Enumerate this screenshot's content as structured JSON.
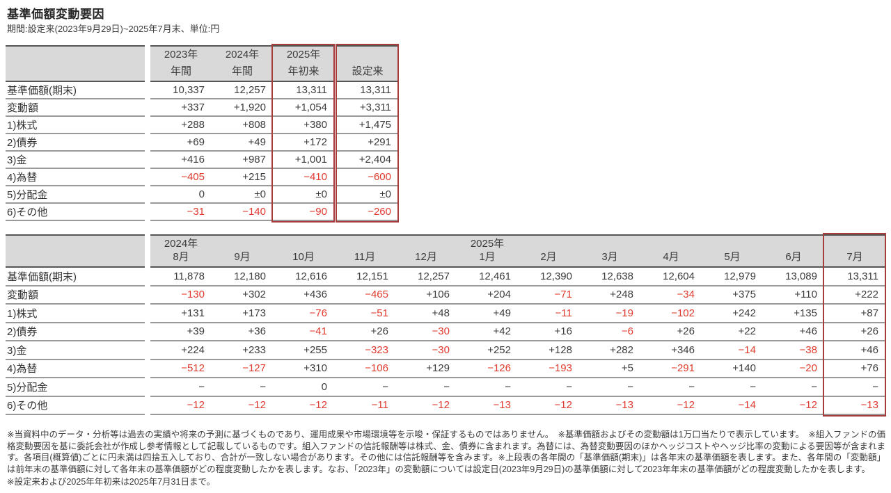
{
  "title": "基準価額変動要因",
  "subtitle": "期間:設定来(2023年9月29日)~2025年7月末、単位:円",
  "colors": {
    "header_bg": "#d9d9d9",
    "highlight_box": "#a83c3c",
    "negative_text": "#e03a2e",
    "text": "#3c3c3c",
    "line": "#999999",
    "dark_line": "#555555"
  },
  "row_labels": [
    "基準価額(期末)",
    "変動額",
    "1)株式",
    "2)債券",
    "3)金",
    "4)為替",
    "5)分配金",
    "6)その他"
  ],
  "yearly_table": {
    "columns": [
      {
        "line1": "2023年",
        "line2": "年間"
      },
      {
        "line1": "2024年",
        "line2": "年間"
      },
      {
        "line1": "2025年",
        "line2": "年初来",
        "highlight": true
      },
      {
        "line1": "",
        "line2": "設定来",
        "highlight": true
      }
    ],
    "rows": [
      [
        "10,337",
        "12,257",
        "13,311",
        "13,311"
      ],
      [
        "+337",
        "+1,920",
        "+1,054",
        "+3,311"
      ],
      [
        "+288",
        "+808",
        "+380",
        "+1,475"
      ],
      [
        "+69",
        "+49",
        "+172",
        "+291"
      ],
      [
        "+416",
        "+987",
        "+1,001",
        "+2,404"
      ],
      [
        "−405",
        "+215",
        "−410",
        "−600"
      ],
      [
        "0",
        "±0",
        "±0",
        "±0"
      ],
      [
        "−31",
        "−140",
        "−90",
        "−260"
      ]
    ]
  },
  "monthly_table": {
    "columns": [
      {
        "line1": "2024年",
        "line2": "8月"
      },
      {
        "line1": "",
        "line2": "9月"
      },
      {
        "line1": "",
        "line2": "10月"
      },
      {
        "line1": "",
        "line2": "11月"
      },
      {
        "line1": "",
        "line2": "12月"
      },
      {
        "line1": "2025年",
        "line2": "1月"
      },
      {
        "line1": "",
        "line2": "2月"
      },
      {
        "line1": "",
        "line2": "3月"
      },
      {
        "line1": "",
        "line2": "4月"
      },
      {
        "line1": "",
        "line2": "5月"
      },
      {
        "line1": "",
        "line2": "6月"
      },
      {
        "line1": "",
        "line2": "7月",
        "highlight": true
      }
    ],
    "rows": [
      [
        "11,878",
        "12,180",
        "12,616",
        "12,151",
        "12,257",
        "12,461",
        "12,390",
        "12,638",
        "12,604",
        "12,979",
        "13,089",
        "13,311"
      ],
      [
        "−130",
        "+302",
        "+436",
        "−465",
        "+106",
        "+204",
        "−71",
        "+248",
        "−34",
        "+375",
        "+110",
        "+222"
      ],
      [
        "+131",
        "+173",
        "−76",
        "−51",
        "+48",
        "+49",
        "−11",
        "−19",
        "−102",
        "+242",
        "+135",
        "+87"
      ],
      [
        "+39",
        "+36",
        "−41",
        "+26",
        "−30",
        "+42",
        "+16",
        "−6",
        "+26",
        "+22",
        "+46",
        "+26"
      ],
      [
        "+224",
        "+233",
        "+255",
        "−323",
        "−30",
        "+252",
        "+128",
        "+282",
        "+346",
        "−14",
        "−38",
        "+46"
      ],
      [
        "−512",
        "−127",
        "+310",
        "−106",
        "+129",
        "−126",
        "−193",
        "+5",
        "−291",
        "+140",
        "−20",
        "+76"
      ],
      [
        "−",
        "−",
        "0",
        "−",
        "−",
        "−",
        "−",
        "−",
        "−",
        "−",
        "−",
        "−"
      ],
      [
        "−12",
        "−12",
        "−12",
        "−11",
        "−12",
        "−13",
        "−12",
        "−13",
        "−12",
        "−14",
        "−12",
        "−13"
      ]
    ]
  },
  "footnotes": {
    "paragraph": "※当資料中のデータ・分析等は過去の実績や将来の予測に基づくものであり、運用成果や市場環境等を示唆・保証するものではありません。　※基準価額およびその変動額は1万口当たりで表示しています。　※組入ファンドの価格変動要因を基に委託会社が作成し参考情報として記載しているものです。組入ファンドの信託報酬等は株式、金、債券に含まれます。為替には、為替変動要因のほかヘッジコストやヘッジ比率の変動による要因等が含まれます。各項目(概算値)ごとに円未満は四捨五入しており、合計が一致しない場合があります。その他には信託報酬等を含みます。※上段表の各年間の「基準価額(期末)」は各年末の基準価額を表します。また、各年間の「変動額」は前年末の基準価額に対して各年末の基準価額がどの程度変動したかを表します。なお、「2023年」の変動額については設定日(2023年9月29日)の基準価額に対して2023年年末の基準価額がどの程度変動したかを表します。",
    "last_line": "※設定来および2025年年初来は2025年7月31日まで。"
  }
}
